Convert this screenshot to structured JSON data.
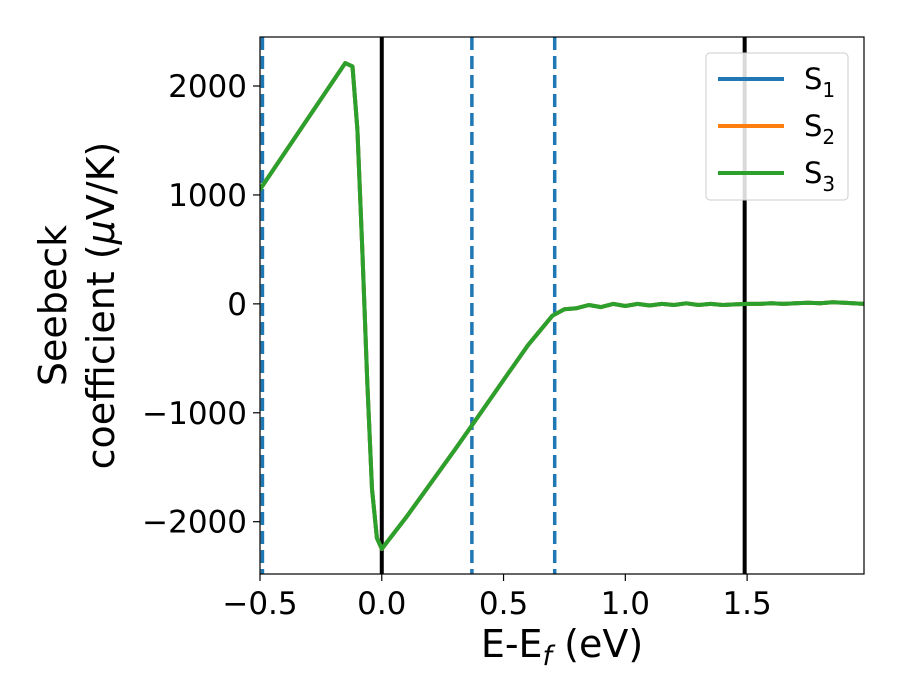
{
  "chart_data": {
    "type": "line",
    "title": "",
    "xlabel": {
      "base": "E-E",
      "sub": "f",
      "rest": " (eV)"
    },
    "ylabel": {
      "line1": "Seebeck",
      "line2_prefix": "coefficient  (",
      "mu": "μ",
      "line2_suffix": "V/K)"
    },
    "xlim": [
      -0.5,
      1.98
    ],
    "ylim": [
      -2480,
      2450
    ],
    "xticks": [
      {
        "value": -0.5,
        "label": "−0.5"
      },
      {
        "value": 0.0,
        "label": "0.0"
      },
      {
        "value": 0.5,
        "label": "0.5"
      },
      {
        "value": 1.0,
        "label": "1.0"
      },
      {
        "value": 1.5,
        "label": "1.5"
      }
    ],
    "yticks": [
      {
        "value": 2000,
        "label": "2000"
      },
      {
        "value": 1000,
        "label": "1000"
      },
      {
        "value": 0,
        "label": "0"
      },
      {
        "value": -1000,
        "label": "−1000"
      },
      {
        "value": -2000,
        "label": "−2000"
      }
    ],
    "grid": false,
    "legend_position": "top-right",
    "series": [
      {
        "name": "S",
        "name_sub": "1",
        "color": "#1f77b4",
        "x": [
          -0.5,
          -0.15,
          -0.12,
          -0.1,
          -0.08,
          -0.06,
          -0.04,
          -0.02,
          0.0,
          0.1,
          0.2,
          0.3,
          0.4,
          0.5,
          0.6,
          0.7,
          0.75,
          0.8,
          0.85,
          0.9,
          0.95,
          1.0,
          1.05,
          1.1,
          1.15,
          1.2,
          1.25,
          1.3,
          1.35,
          1.4,
          1.45,
          1.5,
          1.55,
          1.6,
          1.65,
          1.7,
          1.75,
          1.8,
          1.85,
          1.9,
          1.98
        ],
        "y": [
          1050,
          2210,
          2180,
          1600,
          500,
          -700,
          -1700,
          -2150,
          -2250,
          -1960,
          -1650,
          -1340,
          -1020,
          -700,
          -380,
          -110,
          -50,
          -40,
          -10,
          -30,
          0,
          -20,
          0,
          -15,
          0,
          -10,
          5,
          -10,
          0,
          -10,
          -5,
          0,
          0,
          5,
          0,
          5,
          10,
          5,
          15,
          10,
          0
        ]
      },
      {
        "name": "S",
        "name_sub": "2",
        "color": "#ff7f0e",
        "x": [
          -0.5,
          -0.15,
          -0.12,
          -0.1,
          -0.08,
          -0.06,
          -0.04,
          -0.02,
          0.0,
          0.1,
          0.2,
          0.3,
          0.4,
          0.5,
          0.6,
          0.7,
          0.75,
          0.8,
          0.85,
          0.9,
          0.95,
          1.0,
          1.05,
          1.1,
          1.15,
          1.2,
          1.25,
          1.3,
          1.35,
          1.4,
          1.45,
          1.5,
          1.55,
          1.6,
          1.65,
          1.7,
          1.75,
          1.8,
          1.85,
          1.9,
          1.98
        ],
        "y": [
          1050,
          2210,
          2180,
          1600,
          500,
          -700,
          -1700,
          -2150,
          -2250,
          -1960,
          -1650,
          -1340,
          -1020,
          -700,
          -380,
          -110,
          -50,
          -40,
          -10,
          -30,
          0,
          -20,
          0,
          -15,
          0,
          -10,
          5,
          -10,
          0,
          -10,
          -5,
          0,
          0,
          5,
          0,
          5,
          10,
          5,
          15,
          10,
          0
        ]
      },
      {
        "name": "S",
        "name_sub": "3",
        "color": "#2ca02c",
        "x": [
          -0.5,
          -0.15,
          -0.12,
          -0.1,
          -0.08,
          -0.06,
          -0.04,
          -0.02,
          0.0,
          0.1,
          0.2,
          0.3,
          0.4,
          0.5,
          0.6,
          0.7,
          0.75,
          0.8,
          0.85,
          0.9,
          0.95,
          1.0,
          1.05,
          1.1,
          1.15,
          1.2,
          1.25,
          1.3,
          1.35,
          1.4,
          1.45,
          1.5,
          1.55,
          1.6,
          1.65,
          1.7,
          1.75,
          1.8,
          1.85,
          1.9,
          1.98
        ],
        "y": [
          1050,
          2210,
          2180,
          1600,
          500,
          -700,
          -1700,
          -2150,
          -2250,
          -1960,
          -1650,
          -1340,
          -1020,
          -700,
          -380,
          -110,
          -50,
          -40,
          -10,
          -30,
          0,
          -20,
          0,
          -15,
          0,
          -10,
          5,
          -10,
          0,
          -10,
          -5,
          0,
          0,
          5,
          0,
          5,
          10,
          5,
          15,
          10,
          0
        ]
      }
    ],
    "vlines": [
      {
        "x": 0.0,
        "style": "solid",
        "color": "#000000"
      },
      {
        "x": 1.49,
        "style": "solid",
        "color": "#000000"
      },
      {
        "x": -0.49,
        "style": "dashed",
        "color": "#1f77b4"
      },
      {
        "x": 0.37,
        "style": "dashed",
        "color": "#1f77b4"
      },
      {
        "x": 0.71,
        "style": "dashed",
        "color": "#1f77b4"
      }
    ]
  }
}
